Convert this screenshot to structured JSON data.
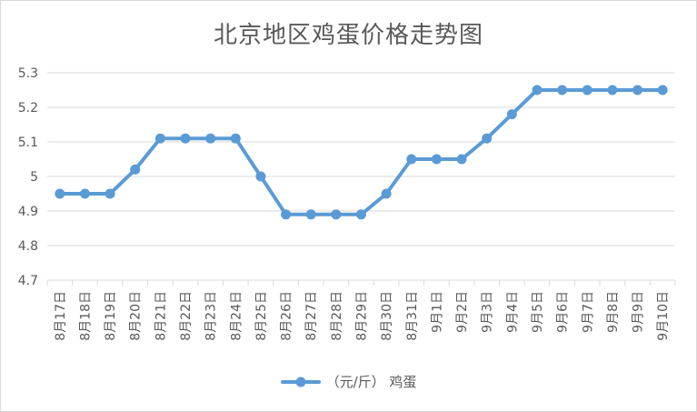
{
  "chart_data": {
    "type": "line",
    "title": "北京地区鸡蛋价格走势图",
    "xlabel": "",
    "ylabel": "",
    "ylim": [
      4.7,
      5.3
    ],
    "yticks": [
      "4.7",
      "4.8",
      "4.9",
      "5",
      "5.1",
      "5.2",
      "5.3"
    ],
    "grid": true,
    "legend_position": "bottom",
    "categories": [
      "8月17日",
      "8月18日",
      "8月19日",
      "8月20日",
      "8月21日",
      "8月22日",
      "8月23日",
      "8月24日",
      "8月25日",
      "8月26日",
      "8月27日",
      "8月28日",
      "8月29日",
      "8月30日",
      "8月31日",
      "9月1日",
      "9月2日",
      "9月3日",
      "9月4日",
      "9月5日",
      "9月6日",
      "9月7日",
      "9月8日",
      "9月9日",
      "9月10日"
    ],
    "series": [
      {
        "name": "（元/斤） 鸡蛋",
        "color": "#5b9bd5",
        "values": [
          4.95,
          4.95,
          4.95,
          5.02,
          5.11,
          5.11,
          5.11,
          5.11,
          5.0,
          4.89,
          4.89,
          4.89,
          4.89,
          4.95,
          5.05,
          5.05,
          5.05,
          5.11,
          5.18,
          5.25,
          5.25,
          5.25,
          5.25,
          5.25,
          5.25
        ]
      }
    ]
  }
}
